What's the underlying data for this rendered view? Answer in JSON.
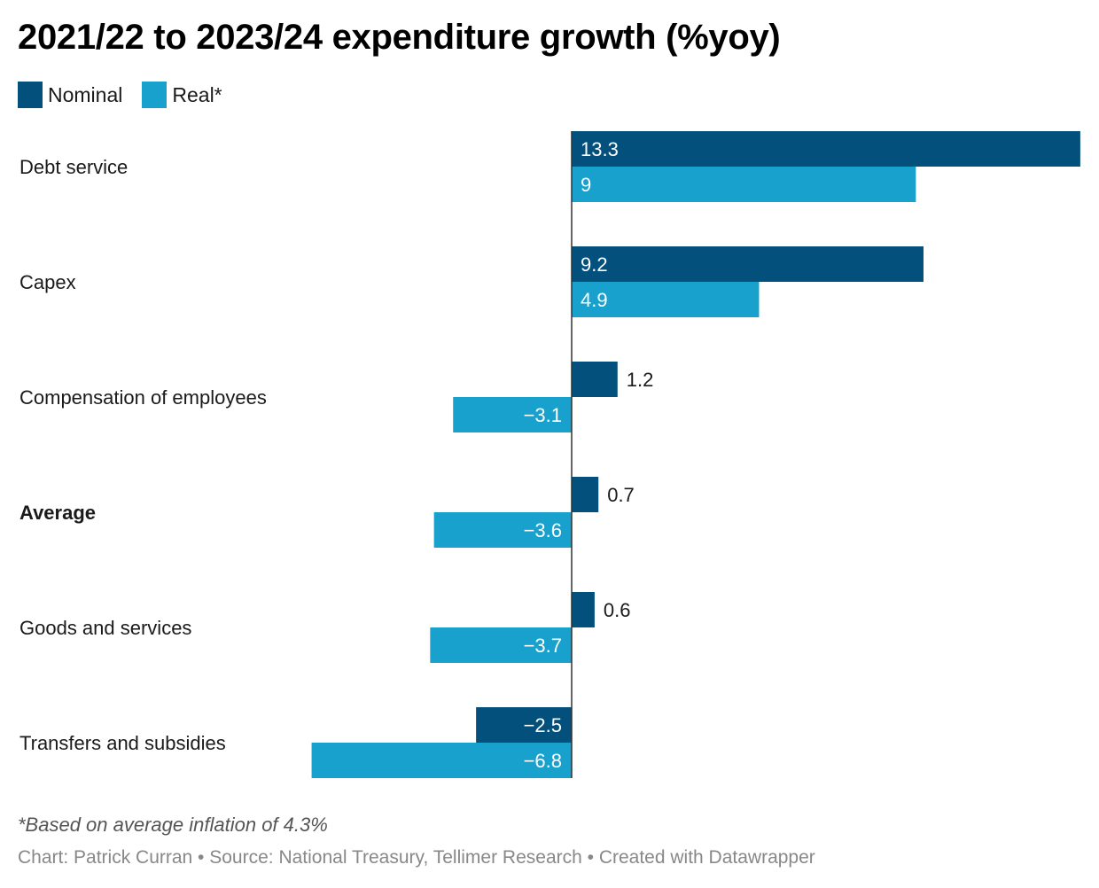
{
  "chart_data": {
    "type": "bar",
    "orientation": "horizontal",
    "title": "2021/22 to 2023/24 expenditure growth (%yoy)",
    "categories": [
      "Debt service",
      "Capex",
      "Compensation of employees",
      "Average",
      "Goods and services",
      "Transfers and subsidies"
    ],
    "bold_categories": [
      "Average"
    ],
    "series": [
      {
        "name": "Nominal",
        "color": "#03507d",
        "values": [
          13.3,
          9.2,
          1.2,
          0.7,
          0.6,
          -2.5
        ],
        "labels": [
          "13.3",
          "9.2",
          "1.2",
          "0.7",
          "0.6",
          "−2.5"
        ]
      },
      {
        "name": "Real*",
        "color": "#18a1cd",
        "values": [
          9,
          4.9,
          -3.1,
          -3.6,
          -3.7,
          -6.8
        ],
        "labels": [
          "9",
          "4.9",
          "−3.1",
          "−3.6",
          "−3.7",
          "−6.8"
        ]
      }
    ],
    "xlim": [
      -6.8,
      13.3
    ],
    "grid": false,
    "legend_position": "top-left",
    "note": "*Based on average inflation of 4.3%",
    "source": "Chart: Patrick Curran • Source: National Treasury, Tellimer Research • Created with Datawrapper"
  }
}
